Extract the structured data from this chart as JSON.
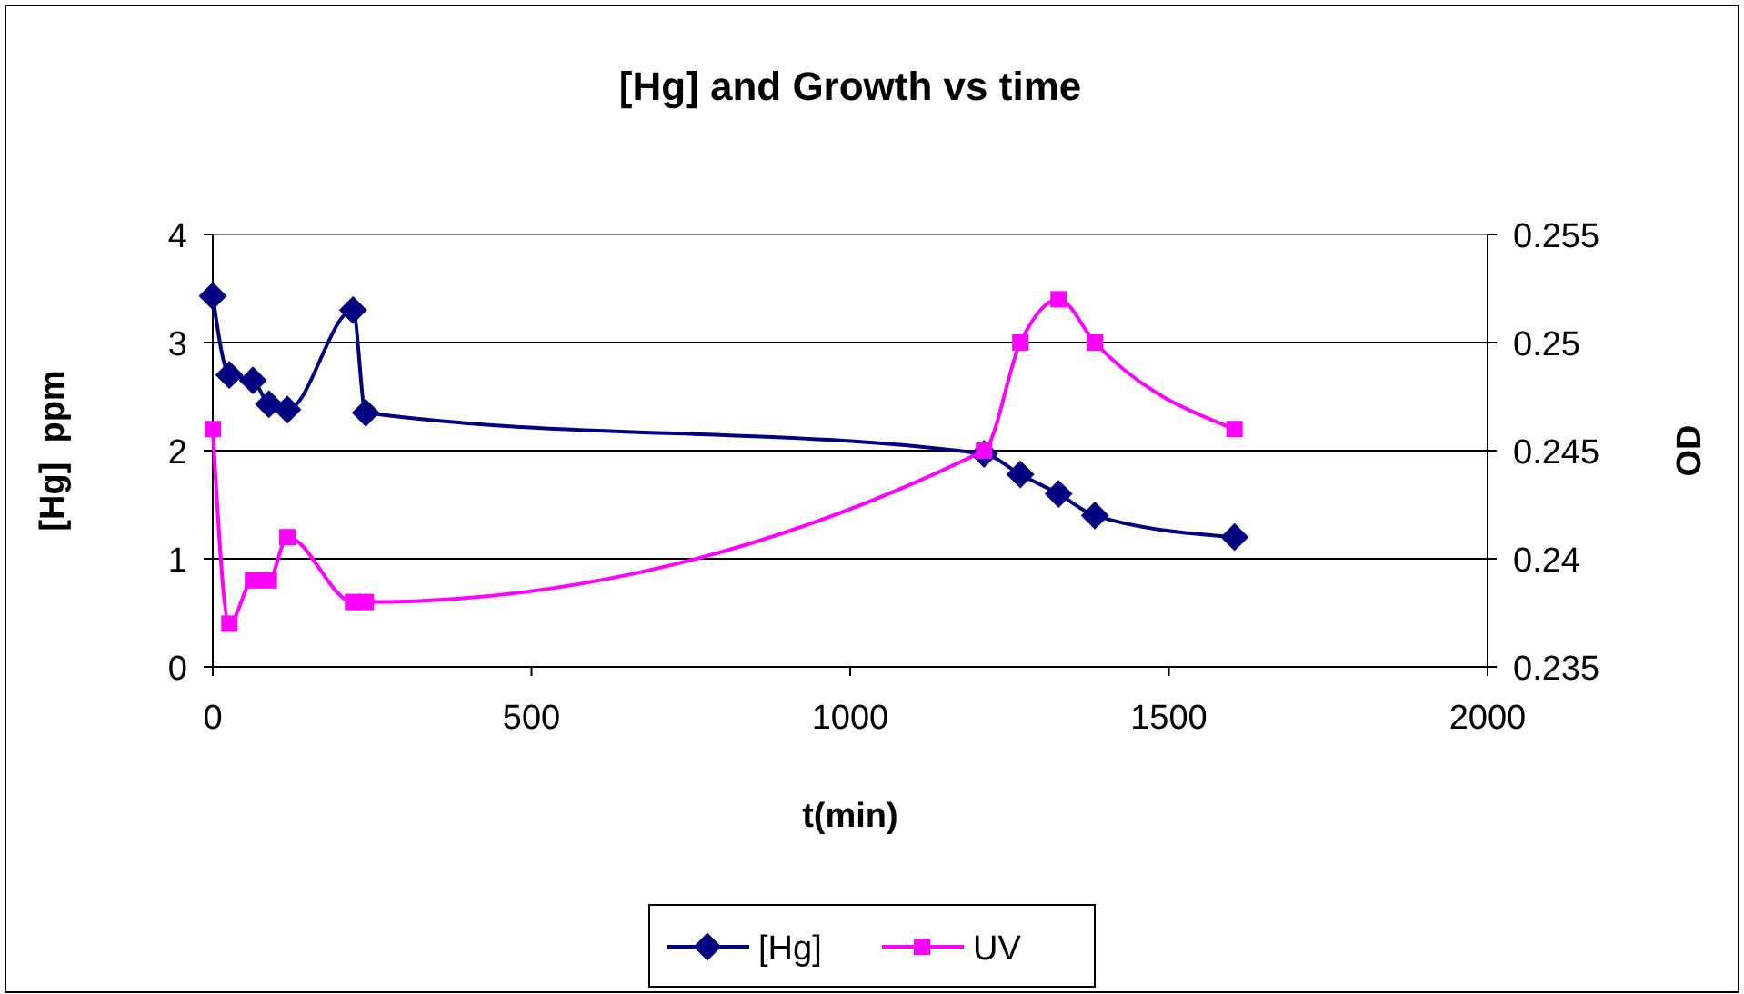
{
  "chart_data": {
    "type": "line",
    "title": "[Hg] and Growth vs time",
    "xlabel": "t(min)",
    "ylabel": "[Hg]  ppm",
    "y2label": "OD",
    "xlim": [
      0,
      2000
    ],
    "xticks": [
      0,
      500,
      1000,
      1500,
      2000
    ],
    "ylim": [
      0,
      4
    ],
    "yticks": [
      0,
      1,
      2,
      3,
      4
    ],
    "y2lim": [
      0.235,
      0.255
    ],
    "y2ticks": [
      0.235,
      0.24,
      0.245,
      0.25,
      0.255
    ],
    "grid": "y",
    "legend": "bottom",
    "series": [
      {
        "name": "[Hg]",
        "color": "#000080",
        "marker": "diamond",
        "x": [
          0,
          26,
          63,
          88,
          117,
          220,
          240,
          1210,
          1267,
          1327,
          1384,
          1603
        ],
        "values": [
          3.43,
          2.7,
          2.65,
          2.43,
          2.38,
          3.3,
          2.35,
          1.97,
          1.78,
          1.6,
          1.4,
          1.2
        ]
      },
      {
        "name": "UV",
        "color": "#ff00ff",
        "marker": "square",
        "axis": "y2",
        "x": [
          0,
          26,
          63,
          88,
          117,
          220,
          240,
          1210,
          1267,
          1327,
          1384,
          1603
        ],
        "values": [
          0.246,
          0.237,
          0.239,
          0.239,
          0.241,
          0.238,
          0.238,
          0.245,
          0.25,
          0.252,
          0.25,
          0.246
        ]
      }
    ]
  }
}
